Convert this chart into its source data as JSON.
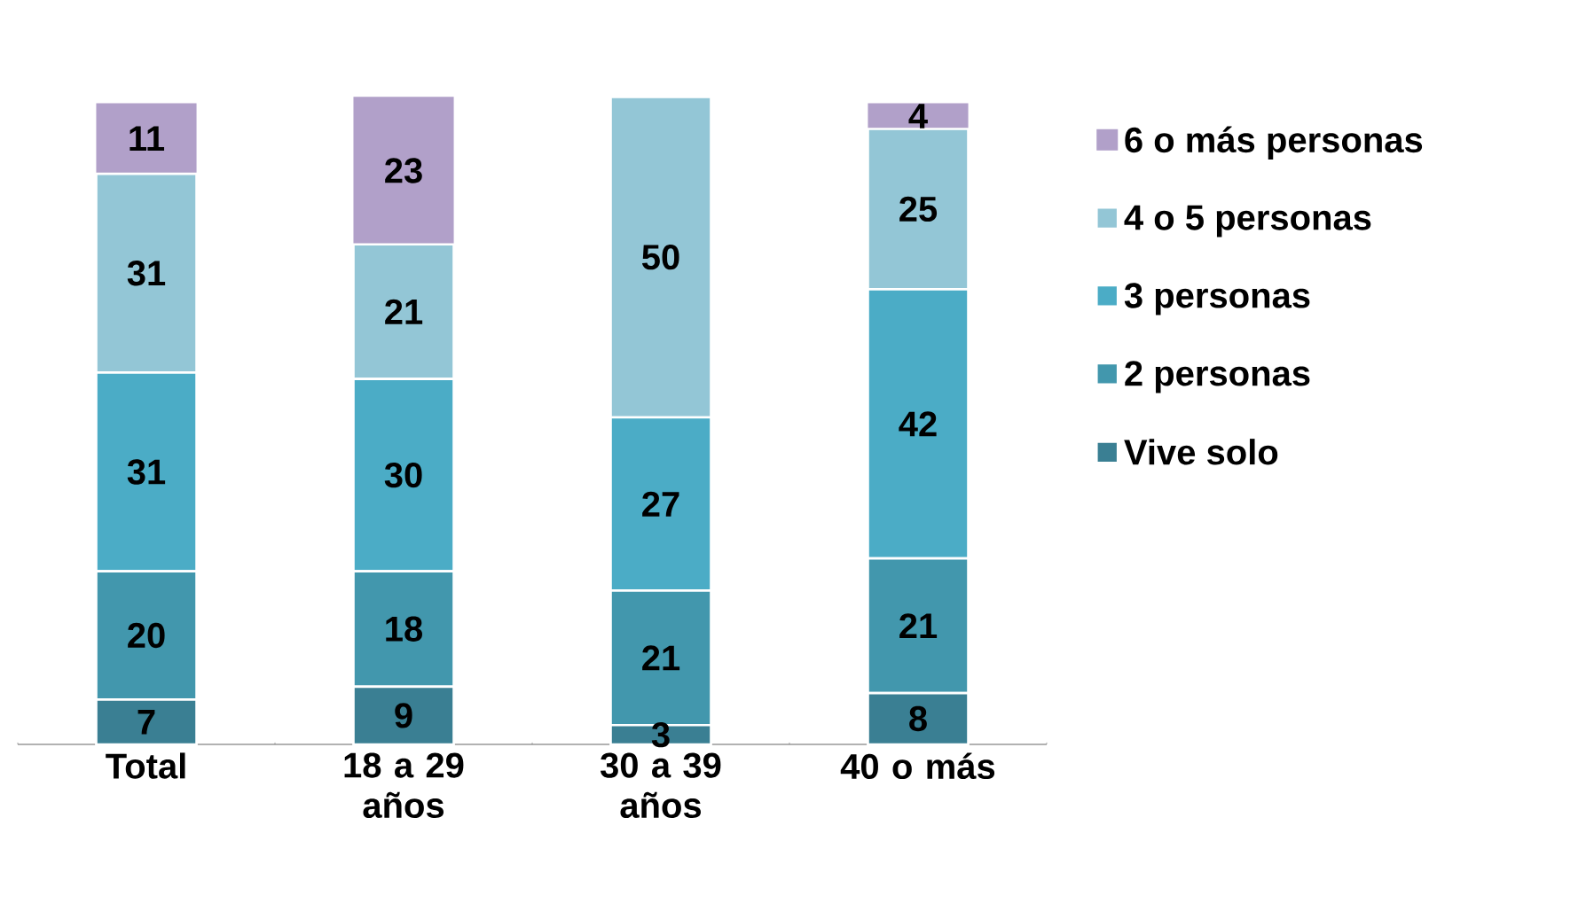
{
  "chart_data": {
    "type": "bar",
    "stacked": true,
    "data_labels": true,
    "legend": "right",
    "categories": [
      "Total",
      "18 a 29 años",
      "30 a 39 años",
      "40 o más"
    ],
    "series": [
      {
        "name": "Vive solo",
        "color": "#3a7f93",
        "values": [
          7,
          9,
          3,
          8
        ]
      },
      {
        "name": "2 personas",
        "color": "#4297ad",
        "values": [
          20,
          18,
          21,
          21
        ]
      },
      {
        "name": "3 personas",
        "color": "#4bacc6",
        "values": [
          31,
          30,
          27,
          42
        ]
      },
      {
        "name": "4 o 5 personas",
        "color": "#93c6d6",
        "values": [
          31,
          21,
          50,
          25
        ]
      },
      {
        "name": "6 o más personas",
        "color": "#b1a0c9",
        "values": [
          11,
          23,
          null,
          4
        ]
      }
    ]
  }
}
